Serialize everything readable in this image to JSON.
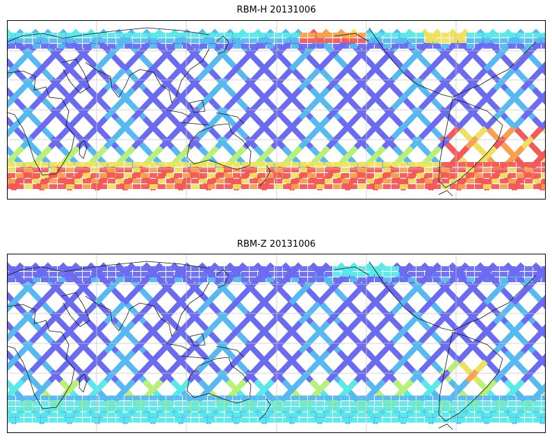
{
  "figure": {
    "panels": [
      {
        "title": "RBM-H 20131006",
        "variant": "H"
      },
      {
        "title": "RBM-Z 20131006",
        "variant": "Z"
      }
    ]
  },
  "colors": {
    "low": "#6b6bf0",
    "mid_low": "#58b8f0",
    "cyan": "#5ae8e8",
    "green": "#b8f07a",
    "yellow": "#f0e060",
    "orange": "#f8a050",
    "high": "#f25a5a",
    "coast": "#111111",
    "grid": "#c8c8c8"
  },
  "map": {
    "projection": "equirectangular",
    "gridlines": true,
    "coastlines": true,
    "lon_range": [
      20,
      380
    ],
    "lat_range": [
      -90,
      90
    ],
    "data_lat_range": [
      -75,
      75
    ]
  }
}
